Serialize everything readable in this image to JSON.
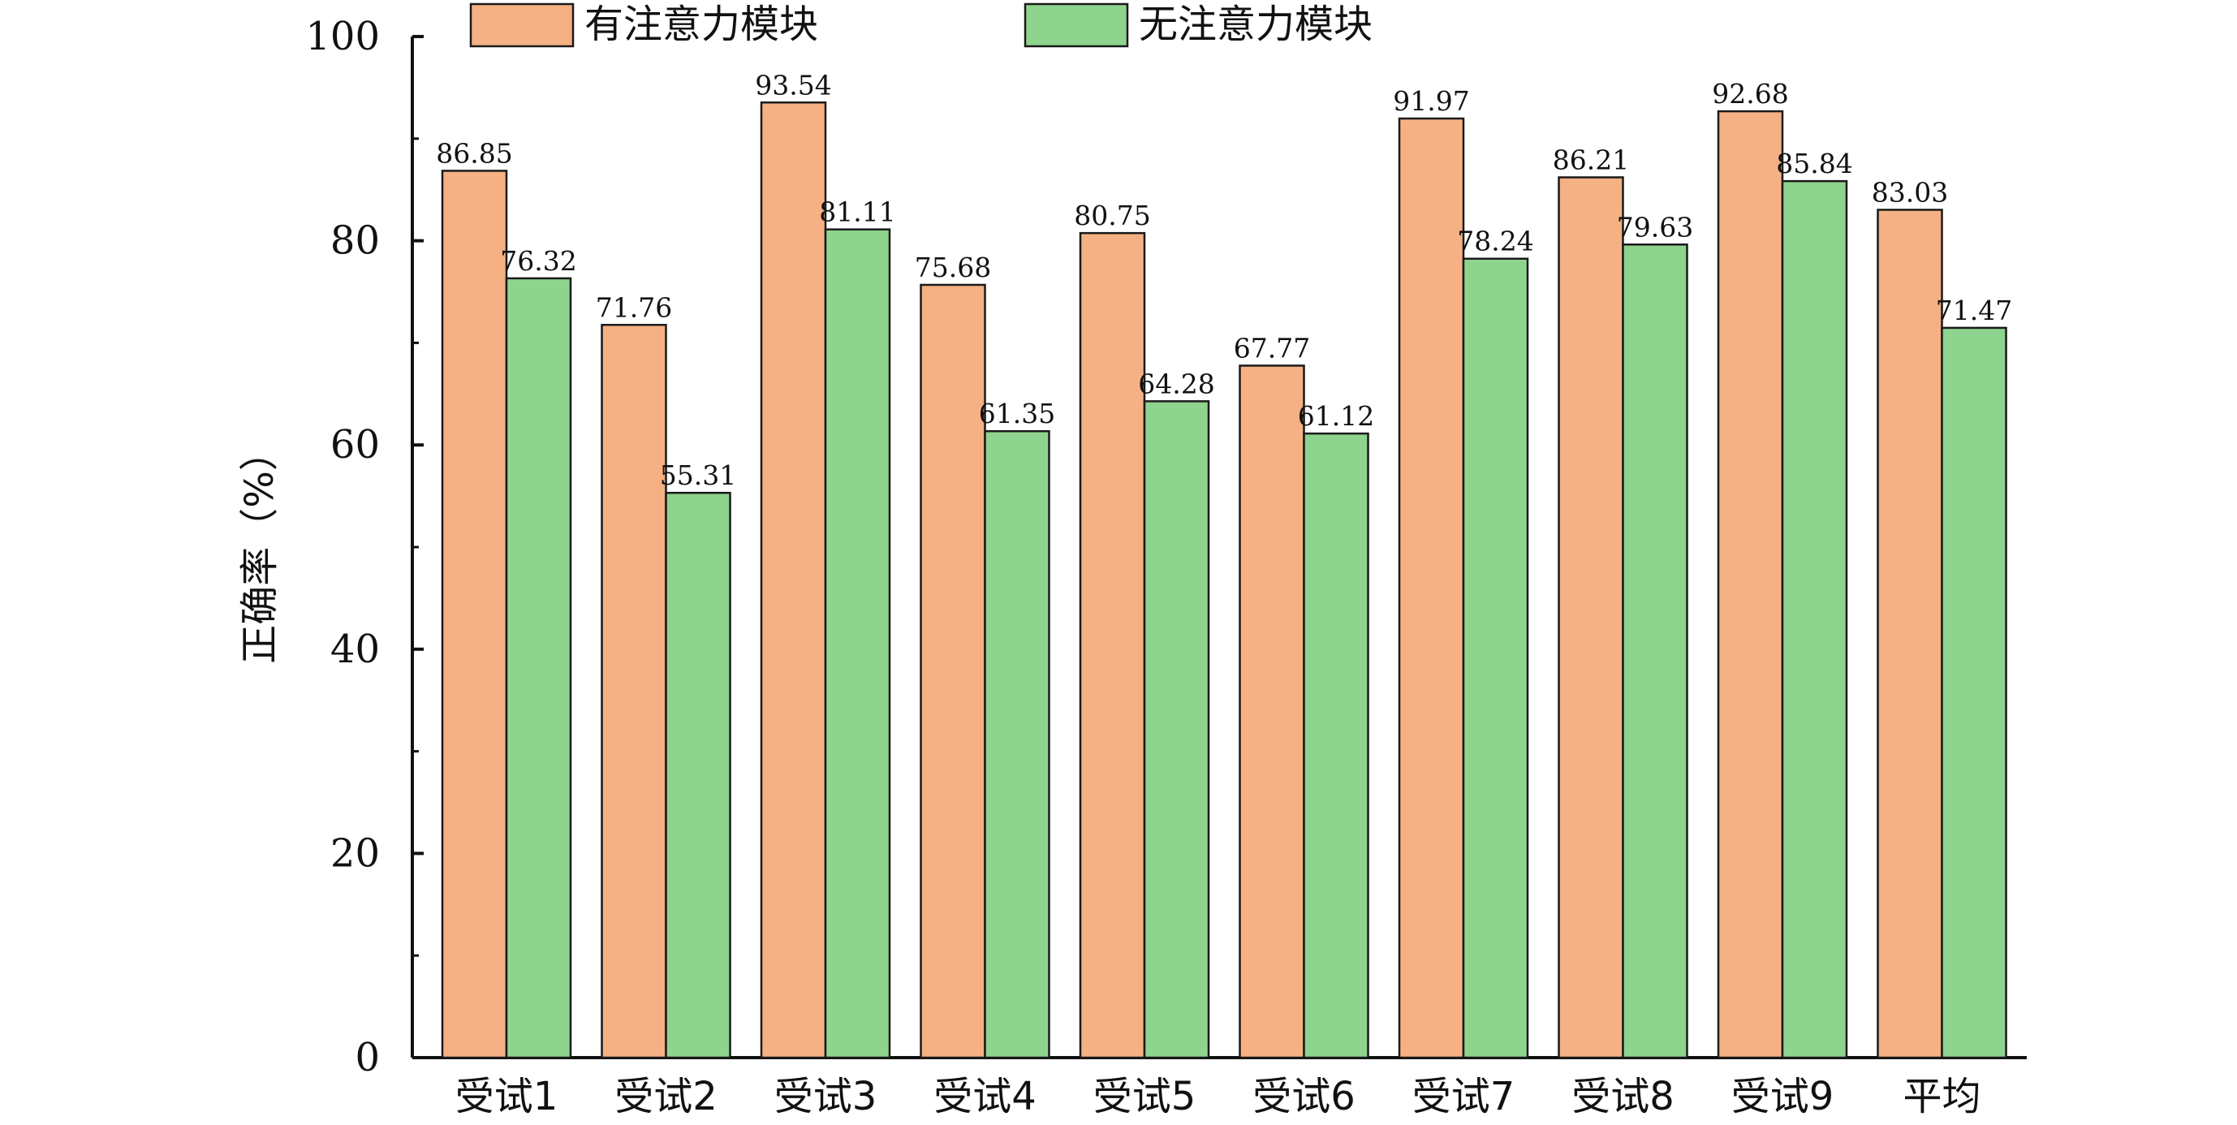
{
  "chart_data": {
    "type": "bar",
    "title": "",
    "xlabel": "",
    "ylabel": "正确率（%）",
    "ylim": [
      0,
      100
    ],
    "yticks": [
      0,
      20,
      40,
      60,
      80,
      100
    ],
    "grid": false,
    "legend_position": "top",
    "categories": [
      "受试1",
      "受试2",
      "受试3",
      "受试4",
      "受试5",
      "受试6",
      "受试7",
      "受试8",
      "受试9",
      "平均"
    ],
    "series": [
      {
        "name": "有注意力模块",
        "color": "#f5b183",
        "values": [
          86.85,
          71.76,
          93.54,
          75.68,
          80.75,
          67.77,
          91.97,
          86.21,
          92.68,
          83.03
        ]
      },
      {
        "name": "无注意力模块",
        "color": "#8fd48e",
        "values": [
          76.32,
          55.31,
          81.11,
          61.35,
          64.28,
          61.12,
          78.24,
          79.63,
          85.84,
          71.47
        ]
      }
    ]
  }
}
